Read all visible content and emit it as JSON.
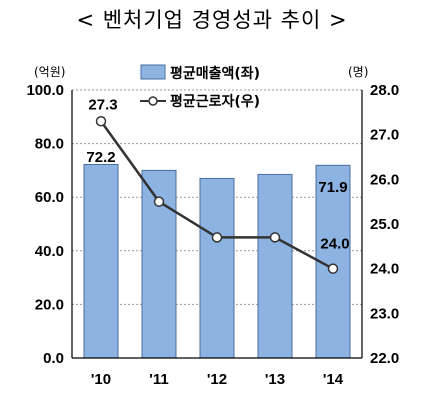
{
  "title": "< 벤처기업 경영성과 추이 >",
  "chart_data": {
    "type": "bar+line",
    "categories": [
      "'10",
      "'11",
      "'12",
      "'13",
      "'14"
    ],
    "series": [
      {
        "name": "평균매출액(좌)",
        "type": "bar",
        "axis": "left",
        "values": [
          72.2,
          70.0,
          67.0,
          68.5,
          71.9
        ],
        "labels": [
          "72.2",
          "",
          "",
          "",
          "71.9"
        ]
      },
      {
        "name": "평균근로자(우)",
        "type": "line",
        "axis": "right",
        "values": [
          27.3,
          25.5,
          24.7,
          24.7,
          24.0
        ],
        "labels": [
          "27.3",
          "",
          "",
          "",
          "24.0"
        ]
      }
    ],
    "left_axis": {
      "unit": "(억원)",
      "ylim": [
        0,
        100
      ],
      "ticks": [
        "0.0",
        "20.0",
        "40.0",
        "60.0",
        "80.0",
        "100.0"
      ]
    },
    "right_axis": {
      "unit": "(명)",
      "ylim": [
        22,
        28
      ],
      "ticks": [
        "22.0",
        "23.0",
        "24.0",
        "25.0",
        "26.0",
        "27.0",
        "28.0"
      ]
    },
    "grid": true,
    "legend_placement": "top-center",
    "colors": {
      "bar_fill": "#8db3e2",
      "bar_stroke": "#4a6e9e",
      "line": "#333333",
      "marker_fill": "#ffffff",
      "grid": "#999999"
    }
  }
}
